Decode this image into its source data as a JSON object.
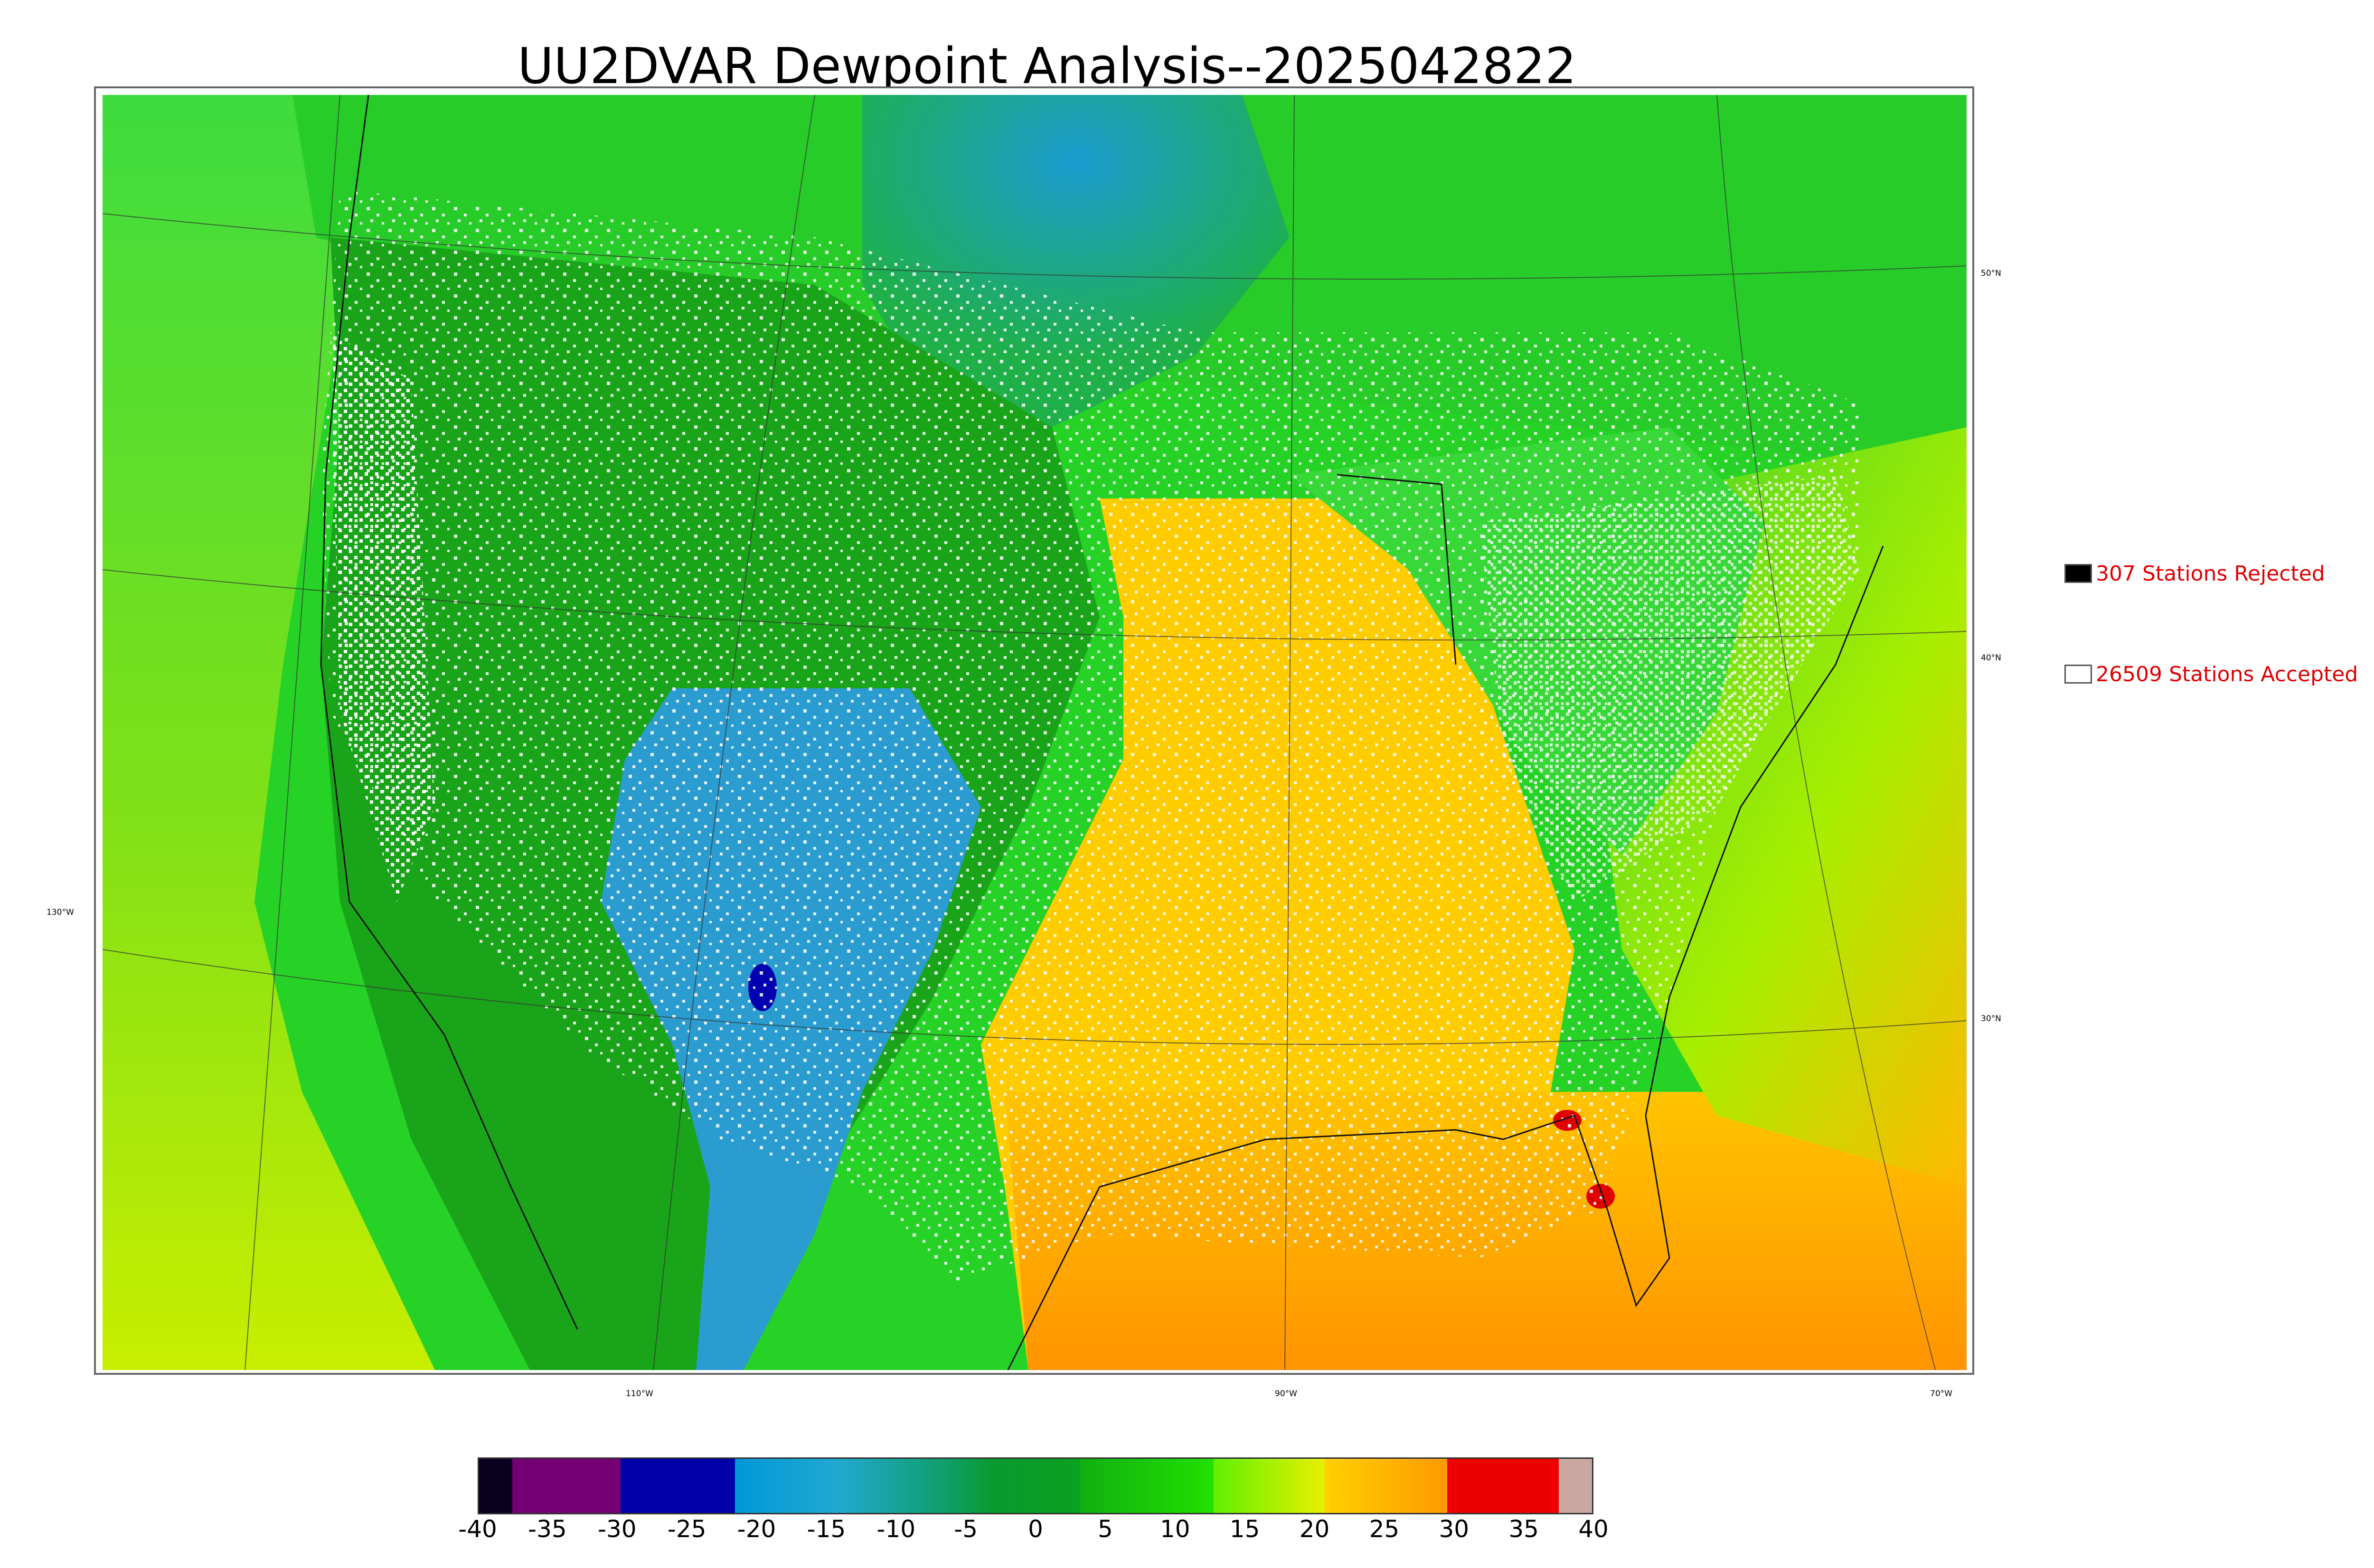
{
  "title": "UU2DVAR Dewpoint Analysis--2025042822",
  "graticule": {
    "lat_labels": [
      "50°N",
      "40°N",
      "30°N"
    ],
    "lon_labels": [
      "130°W",
      "110°W",
      "90°W",
      "70°W"
    ]
  },
  "legend": {
    "rejected": {
      "label": "307 Stations Rejected",
      "color": "#000000"
    },
    "accepted": {
      "label": "26509 Stations Accepted",
      "color": "#ffffff"
    }
  },
  "colorbar": {
    "ticks": [
      "-40",
      "-35",
      "-30",
      "-25",
      "-20",
      "-15",
      "-10",
      "-5",
      "0",
      "5",
      "10",
      "15",
      "20",
      "25",
      "30",
      "35",
      "40"
    ],
    "segments": [
      {
        "color": "#0a0020"
      },
      {
        "color": "#750075"
      },
      {
        "color": "#0000a8"
      },
      {
        "color": "#1aa0d8"
      },
      {
        "color": "#0a9a30"
      },
      {
        "color": "#22e000"
      },
      {
        "color": "#d8f000"
      },
      {
        "color": "#ffa200"
      },
      {
        "color": "#ee0000"
      },
      {
        "color": "#c8a8a0"
      }
    ]
  },
  "colors": {
    "ocean_west": "#7edc18",
    "pacific_south": "#c6ee00",
    "land_dry": "#1cb01c",
    "plains_dry": "#2a9acc",
    "plains_core": "#3aa6d6",
    "moist_south": "#ffc800",
    "gulf": "#ff9a00",
    "east": "#30c030",
    "station_accepted": "#ffffff",
    "station_rejected": "#000000",
    "extreme": "#e00000"
  }
}
